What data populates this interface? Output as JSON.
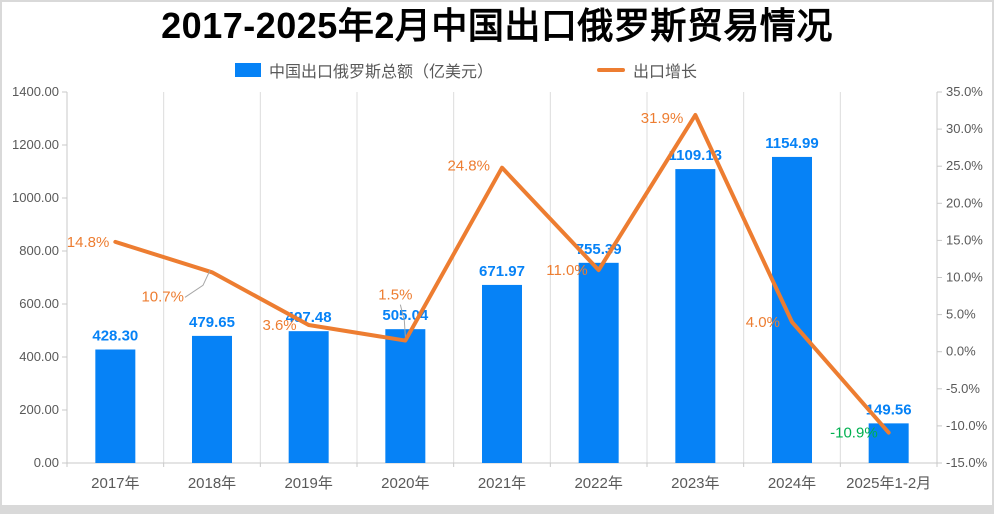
{
  "page": {
    "title": "2017-2025年2月中国出口俄罗斯贸易情况"
  },
  "legend": {
    "series1_label": "中国出口俄罗斯总额（亿美元）",
    "series2_label": "出口增长"
  },
  "colors": {
    "bar": "#0682F6",
    "bar_label": "#0682F6",
    "line": "#ED7D31",
    "line_label": "#ED7D31",
    "negative_growth_label": "#00B050",
    "axis_text": "#595959",
    "gridline": "#DCDCDC",
    "axis_line": "#C9C9C9",
    "leader_line": "#A6A6A6",
    "frame": "#D9D9D9"
  },
  "chart_data": {
    "type": "bar",
    "subtype": "bar-line-combo",
    "title": "2017-2025年2月中国出口俄罗斯贸易情况",
    "categories": [
      "2017年",
      "2018年",
      "2019年",
      "2020年",
      "2021年",
      "2022年",
      "2023年",
      "2024年",
      "2025年1-2月"
    ],
    "series": [
      {
        "name": "中国出口俄罗斯总额（亿美元）",
        "chart_type": "bar",
        "axis": "left",
        "color": "#0682F6",
        "values": [
          428.3,
          479.65,
          497.48,
          505.04,
          671.97,
          755.39,
          1109.13,
          1154.99,
          149.56
        ],
        "data_labels": [
          "428.30",
          "479.65",
          "497.48",
          "505.04",
          "671.97",
          "755.39",
          "1109.13",
          "1154.99",
          "149.56"
        ]
      },
      {
        "name": "出口增长",
        "chart_type": "line",
        "axis": "right",
        "color": "#ED7D31",
        "values_percent": [
          14.8,
          10.7,
          3.6,
          1.5,
          24.8,
          11.0,
          31.9,
          4.0,
          -10.9
        ],
        "data_labels": [
          "14.8%",
          "10.7%",
          "3.6%",
          "1.5%",
          "24.8%",
          "11.0%",
          "31.9%",
          "4.0%",
          "-10.9%"
        ]
      }
    ],
    "left_axis": {
      "min": 0,
      "max": 1400,
      "step": 200,
      "tick_labels": [
        "1400.00",
        "1200.00",
        "1000.00",
        "800.00",
        "600.00",
        "400.00",
        "200.00",
        "0.00"
      ]
    },
    "right_axis": {
      "min": -15,
      "max": 35,
      "step": 5,
      "tick_labels": [
        "35.0%",
        "30.0%",
        "25.0%",
        "20.0%",
        "15.0%",
        "10.0%",
        "5.0%",
        "0.0%",
        "-5.0%",
        "-10.0%",
        "-15.0%"
      ]
    },
    "legend_position": "top",
    "gridlines": "vertical-only"
  }
}
